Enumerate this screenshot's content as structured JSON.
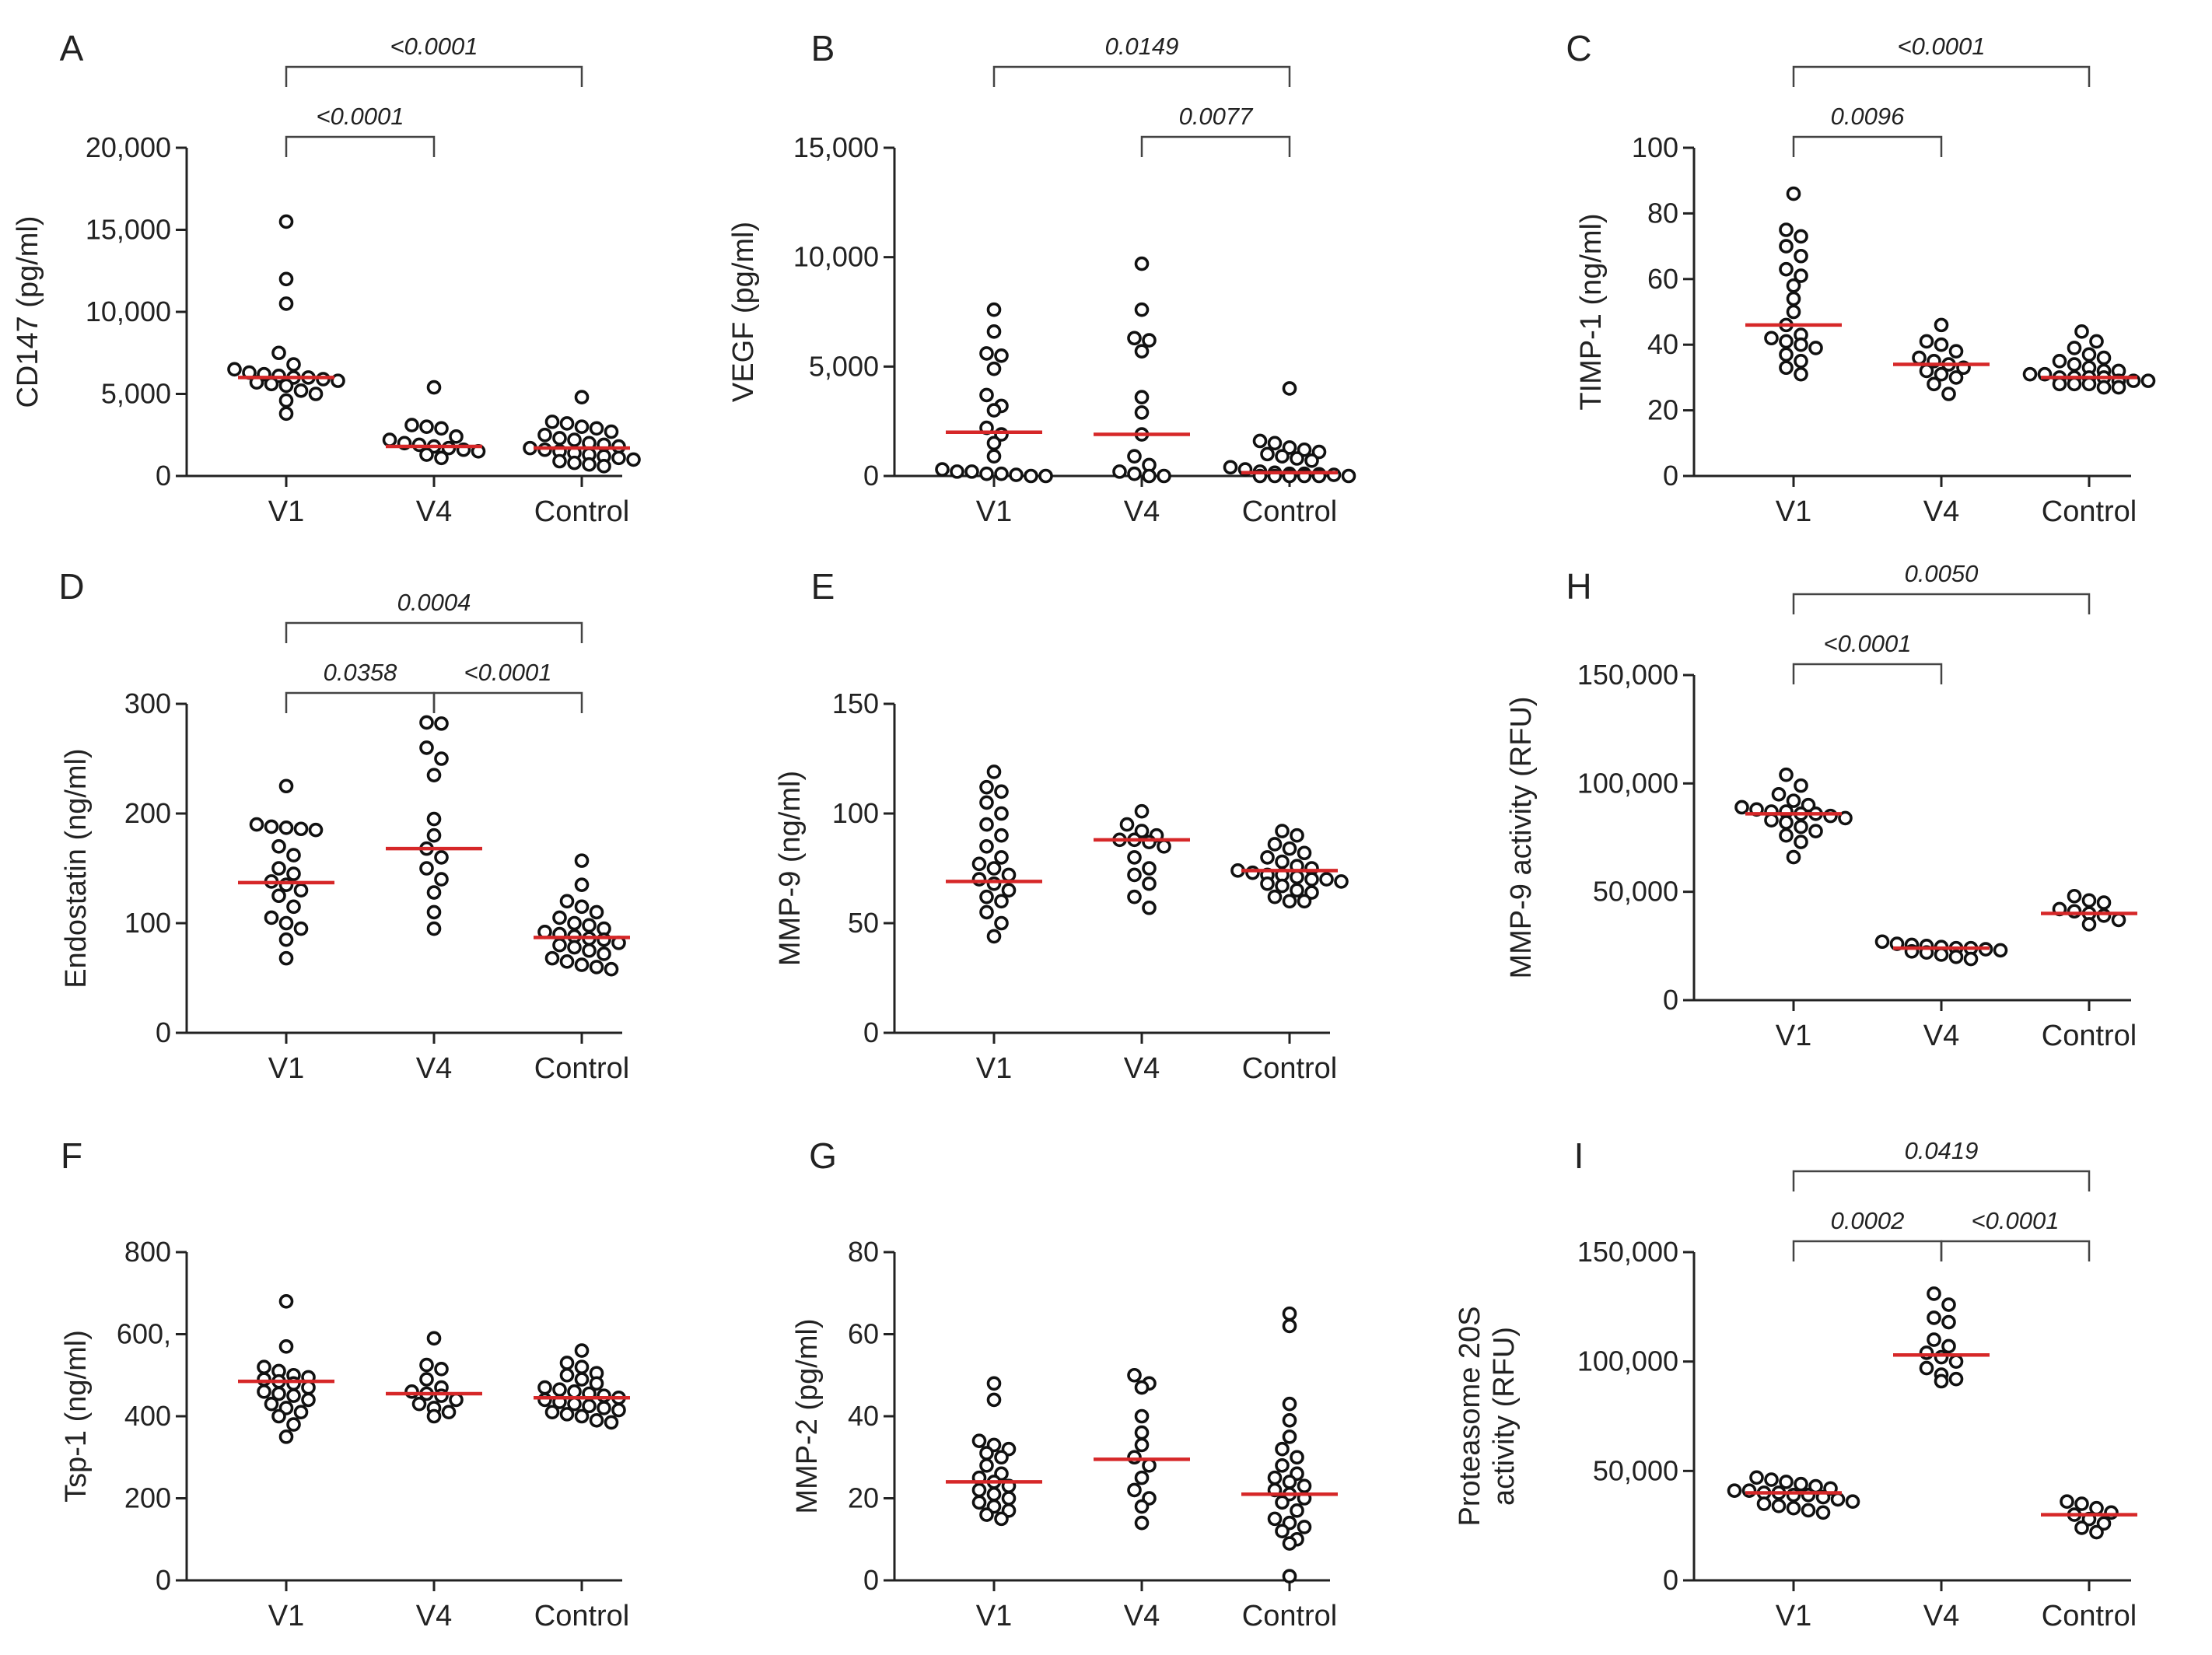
{
  "figure": {
    "marker_color": "#111111",
    "median_color": "#d62728",
    "axis_color": "#222222",
    "bracket_color": "#444444"
  },
  "chart_data": [
    {
      "panel": "A",
      "type": "scatter",
      "ylabel": "CD147 (pg/ml)",
      "ylim": [
        0,
        20000
      ],
      "yticks": [
        0,
        5000,
        10000,
        15000,
        20000
      ],
      "ytick_labels": [
        "0",
        "5,000",
        "10,000",
        "15,000",
        "20,000"
      ],
      "categories": [
        "V1",
        "V4",
        "Control"
      ],
      "medians": [
        6000,
        1800,
        1700
      ],
      "points": [
        [
          15500,
          12000,
          10500,
          7500,
          6800,
          6500,
          6300,
          6200,
          6100,
          6000,
          6000,
          5900,
          5800,
          5700,
          5600,
          5500,
          5200,
          5000,
          4600,
          3800
        ],
        [
          5400,
          3100,
          3000,
          2900,
          2400,
          2200,
          2000,
          1900,
          1800,
          1700,
          1600,
          1500,
          1300,
          1100
        ],
        [
          4800,
          3300,
          3200,
          3000,
          2900,
          2700,
          2500,
          2300,
          2200,
          2000,
          1900,
          1800,
          1700,
          1600,
          1500,
          1400,
          1300,
          1200,
          1100,
          1000,
          900,
          800,
          700,
          600
        ]
      ],
      "brackets": [
        {
          "from": 0,
          "to": 1,
          "label": "<0.0001",
          "level": 1
        },
        {
          "from": 0,
          "to": 2,
          "label": "<0.0001",
          "level": 2
        }
      ]
    },
    {
      "panel": "B",
      "type": "scatter",
      "ylabel": "VEGF (pg/ml)",
      "ylim": [
        0,
        15000
      ],
      "yticks": [
        0,
        5000,
        10000,
        15000
      ],
      "ytick_labels": [
        "0",
        "5,000",
        "10,000",
        "15,000"
      ],
      "categories": [
        "V1",
        "V4",
        "Control"
      ],
      "medians": [
        2000,
        1900,
        150
      ],
      "points": [
        [
          7600,
          6600,
          5600,
          5500,
          4900,
          3700,
          3200,
          3000,
          2200,
          1900,
          1500,
          900,
          300,
          200,
          200,
          100,
          100,
          50,
          0,
          0
        ],
        [
          9700,
          7600,
          6300,
          6200,
          5700,
          3600,
          2900,
          1900,
          900,
          500,
          200,
          100,
          0,
          0
        ],
        [
          4000,
          1600,
          1500,
          1300,
          1200,
          1100,
          1000,
          900,
          800,
          700,
          400,
          300,
          200,
          150,
          100,
          100,
          80,
          50,
          0,
          0,
          0,
          0,
          0,
          0
        ]
      ],
      "brackets": [
        {
          "from": 1,
          "to": 2,
          "label": "0.0077",
          "level": 1
        },
        {
          "from": 0,
          "to": 2,
          "label": "0.0149",
          "level": 2
        }
      ]
    },
    {
      "panel": "C",
      "type": "scatter",
      "ylabel": "TIMP-1 (ng/ml)",
      "ylim": [
        0,
        100
      ],
      "yticks": [
        0,
        20,
        40,
        60,
        80,
        100
      ],
      "ytick_labels": [
        "0",
        "20",
        "40",
        "60",
        "80",
        "100"
      ],
      "categories": [
        "V1",
        "V4",
        "Control"
      ],
      "medians": [
        46,
        34,
        30
      ],
      "points": [
        [
          86,
          75,
          73,
          70,
          67,
          63,
          61,
          58,
          54,
          50,
          46,
          43,
          42,
          41,
          40,
          39,
          37,
          35,
          33,
          31
        ],
        [
          46,
          41,
          40,
          38,
          36,
          35,
          34,
          33,
          32,
          31,
          30,
          28,
          25
        ],
        [
          44,
          41,
          39,
          37,
          36,
          35,
          34,
          33,
          32,
          32,
          31,
          31,
          30,
          30,
          30,
          30,
          29,
          29,
          29,
          28,
          28,
          28,
          27,
          27
        ]
      ],
      "brackets": [
        {
          "from": 0,
          "to": 1,
          "label": "0.0096",
          "level": 1
        },
        {
          "from": 0,
          "to": 2,
          "label": "<0.0001",
          "level": 2
        }
      ]
    },
    {
      "panel": "D",
      "type": "scatter",
      "ylabel": "Endostatin (ng/ml)",
      "ylim": [
        0,
        300
      ],
      "yticks": [
        0,
        100,
        200,
        300
      ],
      "ytick_labels": [
        "0",
        "100",
        "200",
        "300"
      ],
      "categories": [
        "V1",
        "V4",
        "Control"
      ],
      "medians": [
        137,
        168,
        87
      ],
      "points": [
        [
          225,
          190,
          188,
          187,
          186,
          185,
          170,
          162,
          150,
          145,
          138,
          135,
          130,
          125,
          115,
          105,
          100,
          95,
          85,
          68
        ],
        [
          283,
          282,
          260,
          250,
          235,
          195,
          180,
          168,
          160,
          150,
          140,
          128,
          110,
          95
        ],
        [
          157,
          135,
          120,
          115,
          110,
          105,
          100,
          98,
          95,
          92,
          90,
          88,
          86,
          85,
          82,
          80,
          78,
          75,
          72,
          68,
          65,
          62,
          60,
          58
        ]
      ],
      "brackets": [
        {
          "from": 0,
          "to": 1,
          "label": "0.0358",
          "level": 1
        },
        {
          "from": 1,
          "to": 2,
          "label": "<0.0001",
          "level": 1
        },
        {
          "from": 0,
          "to": 2,
          "label": "0.0004",
          "level": 2
        }
      ]
    },
    {
      "panel": "E",
      "type": "scatter",
      "ylabel": "MMP-9 (ng/ml)",
      "ylim": [
        0,
        150
      ],
      "yticks": [
        0,
        50,
        100,
        150
      ],
      "ytick_labels": [
        "0",
        "50",
        "100",
        "150"
      ],
      "categories": [
        "V1",
        "V4",
        "Control"
      ],
      "medians": [
        69,
        88,
        74
      ],
      "points": [
        [
          119,
          112,
          110,
          105,
          100,
          95,
          90,
          85,
          80,
          77,
          75,
          72,
          70,
          68,
          65,
          62,
          60,
          55,
          50,
          44
        ],
        [
          101,
          95,
          92,
          90,
          88,
          88,
          87,
          85,
          80,
          75,
          72,
          68,
          62,
          57
        ],
        [
          92,
          90,
          86,
          84,
          82,
          80,
          78,
          76,
          75,
          74,
          73,
          72,
          72,
          71,
          70,
          70,
          69,
          68,
          67,
          65,
          64,
          62,
          60,
          60
        ]
      ],
      "brackets": []
    },
    {
      "panel": "H",
      "type": "scatter",
      "ylabel": "MMP-9 activity (RFU)",
      "ylim": [
        0,
        150000
      ],
      "yticks": [
        0,
        50000,
        100000,
        150000
      ],
      "ytick_labels": [
        "0",
        "50,000",
        "100,000",
        "150,000"
      ],
      "categories": [
        "V1",
        "V4",
        "Control"
      ],
      "medians": [
        86000,
        24000,
        40000
      ],
      "points": [
        [
          104000,
          99000,
          95000,
          92000,
          90000,
          89000,
          88000,
          87000,
          87000,
          86000,
          86000,
          85000,
          84000,
          83000,
          82000,
          80000,
          78000,
          76000,
          73000,
          66000
        ],
        [
          27000,
          26000,
          25500,
          25000,
          24500,
          24000,
          24000,
          23500,
          23000,
          22500,
          22000,
          21000,
          20000,
          19000
        ],
        [
          48000,
          46000,
          45000,
          42000,
          41000,
          40000,
          39000,
          37000,
          35000
        ]
      ],
      "brackets": [
        {
          "from": 0,
          "to": 1,
          "label": "<0.0001",
          "level": 1
        },
        {
          "from": 0,
          "to": 2,
          "label": "0.0050",
          "level": 2
        }
      ]
    },
    {
      "panel": "F",
      "type": "scatter",
      "ylabel": "Tsp-1 (ng/ml)",
      "ylim": [
        0,
        800
      ],
      "yticks": [
        0,
        200,
        400,
        600,
        800
      ],
      "ytick_labels": [
        "0",
        "200",
        "400",
        "600, ",
        "800"
      ],
      "categories": [
        "V1",
        "V4",
        "Control"
      ],
      "medians": [
        485,
        455,
        445
      ],
      "points": [
        [
          680,
          570,
          520,
          510,
          500,
          495,
          490,
          485,
          480,
          470,
          460,
          455,
          450,
          440,
          430,
          420,
          410,
          400,
          380,
          350
        ],
        [
          590,
          525,
          515,
          490,
          470,
          460,
          455,
          450,
          440,
          430,
          420,
          410,
          400
        ],
        [
          560,
          530,
          520,
          505,
          500,
          490,
          480,
          470,
          465,
          460,
          455,
          450,
          445,
          440,
          435,
          430,
          425,
          420,
          415,
          410,
          405,
          400,
          390,
          385
        ]
      ],
      "brackets": []
    },
    {
      "panel": "G",
      "type": "scatter",
      "ylabel": "MMP-2  (pg/ml)",
      "ylim": [
        0,
        80
      ],
      "yticks": [
        0,
        20,
        40,
        60,
        80
      ],
      "ytick_labels": [
        "0",
        "20",
        "40",
        "60",
        "80"
      ],
      "categories": [
        "V1",
        "V4",
        "Control"
      ],
      "medians": [
        24,
        29.5,
        21
      ],
      "points": [
        [
          48,
          44,
          34,
          33,
          32,
          31,
          30,
          28,
          26,
          25,
          24,
          23,
          22,
          21,
          20,
          19,
          18,
          17,
          16,
          15
        ],
        [
          50,
          48,
          47,
          40,
          36,
          33,
          30,
          28,
          25,
          22,
          20,
          18,
          14
        ],
        [
          65,
          62,
          43,
          39,
          35,
          32,
          30,
          28,
          26,
          25,
          24,
          23,
          22,
          21,
          20,
          19,
          17,
          15,
          14,
          13,
          12,
          10,
          9,
          1
        ]
      ],
      "brackets": []
    },
    {
      "panel": "I",
      "type": "scatter",
      "ylabel": "Proteasome 20S|activity (RFU)",
      "ylim": [
        0,
        150000
      ],
      "yticks": [
        0,
        50000,
        100000,
        150000
      ],
      "ytick_labels": [
        "0",
        "50,000",
        "100,000",
        "150,000"
      ],
      "categories": [
        "V1",
        "V4",
        "Control"
      ],
      "medians": [
        40000,
        103000,
        30000
      ],
      "points": [
        [
          47000,
          46000,
          45000,
          44000,
          43000,
          42000,
          41000,
          41000,
          40000,
          40000,
          39000,
          39000,
          38000,
          37000,
          36000,
          35000,
          34000,
          33000,
          32000,
          31000
        ],
        [
          131000,
          126000,
          120000,
          118000,
          110000,
          107000,
          104000,
          102000,
          100000,
          97000,
          94000,
          92000,
          91000
        ],
        [
          36000,
          35000,
          33000,
          31000,
          30000,
          28000,
          26000,
          24000,
          22000
        ]
      ],
      "brackets": [
        {
          "from": 0,
          "to": 1,
          "label": "0.0002",
          "level": 1
        },
        {
          "from": 1,
          "to": 2,
          "label": "<0.0001",
          "level": 1
        },
        {
          "from": 0,
          "to": 2,
          "label": "0.0419",
          "level": 2
        }
      ]
    }
  ]
}
